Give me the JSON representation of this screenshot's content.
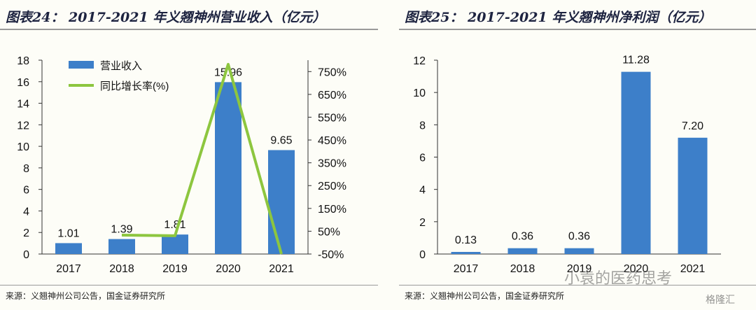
{
  "left": {
    "title": "图表24： 2017-2021 年义翘神州营业收入（亿元）",
    "source": "来源：义翘神州公司公告，国金证券研究所"
  },
  "right": {
    "title": "图表25： 2017-2021 年义翘神州净利润（亿元）",
    "source": "来源：义翘神州公司公告，国金证券研究所"
  },
  "watermark": "小袁的医药思考",
  "watermark2": "格隆汇",
  "colors": {
    "bar": "#3d7fc9",
    "line": "#8dc63f"
  },
  "chart_data": [
    {
      "type": "bar",
      "categories": [
        "2017",
        "2018",
        "2019",
        "2020",
        "2021"
      ],
      "series": [
        {
          "name": "营业收入",
          "values": [
            1.01,
            1.39,
            1.81,
            15.96,
            9.65
          ],
          "type": "bar",
          "axis": "left"
        },
        {
          "name": "同比增长率(%)",
          "values": [
            null,
            33,
            30,
            782,
            -50
          ],
          "type": "line",
          "axis": "right"
        }
      ],
      "data_labels": [
        "1.01",
        "1.39",
        "1.81",
        "15.96",
        "9.65"
      ],
      "ylim": [
        0,
        18
      ],
      "yticks": [
        0,
        2,
        4,
        6,
        8,
        10,
        12,
        14,
        16,
        18
      ],
      "y2lim": [
        -50,
        800
      ],
      "y2ticks": [
        -50,
        50,
        150,
        250,
        350,
        450,
        550,
        650,
        750
      ],
      "y2tick_labels": [
        "-50%",
        "50%",
        "150%",
        "250%",
        "350%",
        "450%",
        "550%",
        "650%",
        "750%"
      ],
      "legend": "top-left"
    },
    {
      "type": "bar",
      "categories": [
        "2017",
        "2018",
        "2019",
        "2020",
        "2021"
      ],
      "series": [
        {
          "values": [
            0.13,
            0.36,
            0.36,
            11.28,
            7.2
          ]
        }
      ],
      "data_labels": [
        "0.13",
        "0.36",
        "0.36",
        "11.28",
        "7.20"
      ],
      "ylim": [
        0,
        12
      ],
      "yticks": [
        0,
        2,
        4,
        6,
        8,
        10,
        12
      ]
    }
  ]
}
